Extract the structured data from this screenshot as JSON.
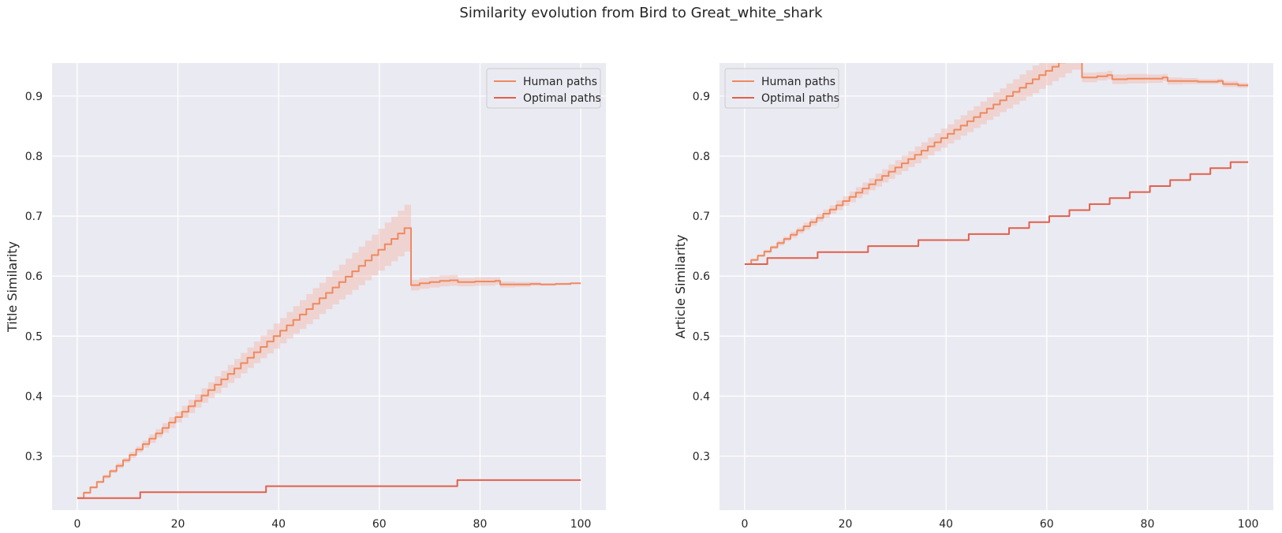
{
  "figure": {
    "title": "Similarity evolution from Bird to Great_white_shark"
  },
  "colors": {
    "human": "#EE8A5F",
    "optimal": "#E2604A",
    "band": "#F4B9A8",
    "panel_bg": "#EAEAF2",
    "grid": "#FFFFFF"
  },
  "chart_data": [
    {
      "type": "line",
      "title": "",
      "xlabel": "Percentage of path",
      "ylabel": "Title Similarity",
      "xlim": [
        -5,
        105
      ],
      "ylim": [
        0.21,
        0.955
      ],
      "xticks": [
        0,
        20,
        40,
        60,
        80,
        100
      ],
      "yticks": [
        0.3,
        0.4,
        0.5,
        0.6,
        0.7,
        0.8,
        0.9
      ],
      "grid": true,
      "legend_position": "top-right",
      "series": [
        {
          "name": "Human paths",
          "style": "staircase",
          "x": [
            0,
            1.3,
            2.6,
            3.9,
            5.2,
            6.5,
            7.8,
            9.1,
            10.4,
            11.7,
            13,
            14.3,
            15.6,
            16.9,
            18.2,
            19.5,
            20.8,
            22.1,
            23.4,
            24.7,
            26,
            27.3,
            28.6,
            29.9,
            31.2,
            32.5,
            33.8,
            35.1,
            36.4,
            37.7,
            39,
            40.3,
            41.6,
            42.9,
            44.2,
            45.5,
            46.8,
            48.1,
            49.4,
            50.7,
            52,
            53.3,
            54.6,
            55.9,
            57.2,
            58.5,
            59.8,
            61.1,
            62.4,
            63.7,
            65,
            66.3,
            68,
            70,
            72,
            74,
            75.6,
            77,
            79,
            81,
            83,
            84,
            87,
            90,
            92,
            95,
            98,
            100
          ],
          "y": [
            0.23,
            0.239,
            0.248,
            0.257,
            0.266,
            0.275,
            0.284,
            0.293,
            0.302,
            0.311,
            0.32,
            0.329,
            0.338,
            0.347,
            0.356,
            0.365,
            0.374,
            0.383,
            0.392,
            0.401,
            0.41,
            0.419,
            0.428,
            0.437,
            0.446,
            0.455,
            0.464,
            0.473,
            0.482,
            0.491,
            0.5,
            0.509,
            0.518,
            0.527,
            0.536,
            0.545,
            0.554,
            0.563,
            0.572,
            0.581,
            0.59,
            0.599,
            0.608,
            0.617,
            0.626,
            0.635,
            0.644,
            0.653,
            0.662,
            0.671,
            0.68,
            0.585,
            0.588,
            0.59,
            0.592,
            0.593,
            0.59,
            0.59,
            0.591,
            0.591,
            0.592,
            0.586,
            0.586,
            0.587,
            0.586,
            0.587,
            0.588,
            0.588
          ],
          "ci_lower": [
            0.23,
            0.237,
            0.246,
            0.255,
            0.263,
            0.272,
            0.28,
            0.289,
            0.297,
            0.306,
            0.314,
            0.322,
            0.331,
            0.339,
            0.347,
            0.356,
            0.364,
            0.372,
            0.381,
            0.389,
            0.397,
            0.405,
            0.414,
            0.422,
            0.43,
            0.438,
            0.447,
            0.455,
            0.463,
            0.471,
            0.479,
            0.488,
            0.496,
            0.504,
            0.512,
            0.52,
            0.528,
            0.537,
            0.545,
            0.553,
            0.561,
            0.569,
            0.577,
            0.585,
            0.593,
            0.601,
            0.609,
            0.617,
            0.625,
            0.633,
            0.641,
            0.576,
            0.579,
            0.581,
            0.583,
            0.584,
            0.583,
            0.583,
            0.584,
            0.584,
            0.586,
            0.581,
            0.582,
            0.584,
            0.584,
            0.585,
            0.587,
            0.587
          ],
          "ci_upper": [
            0.23,
            0.241,
            0.25,
            0.259,
            0.269,
            0.278,
            0.288,
            0.297,
            0.307,
            0.316,
            0.326,
            0.336,
            0.345,
            0.355,
            0.365,
            0.374,
            0.384,
            0.394,
            0.403,
            0.413,
            0.423,
            0.433,
            0.442,
            0.452,
            0.462,
            0.472,
            0.481,
            0.491,
            0.501,
            0.511,
            0.521,
            0.53,
            0.54,
            0.55,
            0.56,
            0.57,
            0.58,
            0.589,
            0.599,
            0.609,
            0.619,
            0.629,
            0.639,
            0.649,
            0.659,
            0.669,
            0.679,
            0.689,
            0.699,
            0.709,
            0.719,
            0.594,
            0.597,
            0.599,
            0.601,
            0.602,
            0.597,
            0.597,
            0.598,
            0.598,
            0.598,
            0.591,
            0.59,
            0.59,
            0.588,
            0.589,
            0.589,
            0.589
          ]
        },
        {
          "name": "Optimal paths",
          "style": "staircase",
          "x": [
            0,
            12.5,
            37.5,
            75.5,
            100
          ],
          "y": [
            0.23,
            0.24,
            0.25,
            0.26,
            0.26
          ]
        }
      ]
    },
    {
      "type": "line",
      "title": "",
      "xlabel": "Percentage of path",
      "ylabel": "Article Similarity",
      "xlim": [
        -5,
        105
      ],
      "ylim": [
        0.21,
        0.955
      ],
      "xticks": [
        0,
        20,
        40,
        60,
        80,
        100
      ],
      "yticks": [
        0.3,
        0.4,
        0.5,
        0.6,
        0.7,
        0.8,
        0.9
      ],
      "grid": true,
      "legend_position": "top-left",
      "series": [
        {
          "name": "Human paths",
          "style": "staircase",
          "x": [
            0,
            1.3,
            2.6,
            3.9,
            5.2,
            6.5,
            7.8,
            9.1,
            10.4,
            11.7,
            13,
            14.3,
            15.6,
            16.9,
            18.2,
            19.5,
            20.8,
            22.1,
            23.4,
            24.7,
            26,
            27.3,
            28.6,
            29.9,
            31.2,
            32.5,
            33.8,
            35.1,
            36.4,
            37.7,
            39,
            40.3,
            41.6,
            42.9,
            44.2,
            45.5,
            46.8,
            48.1,
            49.4,
            50.7,
            52,
            53.3,
            54.6,
            55.9,
            57.2,
            58.5,
            59.8,
            61.1,
            62.4,
            63.7,
            65,
            67,
            70,
            72,
            73,
            76,
            80,
            83,
            84,
            87,
            90,
            94,
            95,
            98,
            100
          ],
          "y": [
            0.62,
            0.627,
            0.634,
            0.641,
            0.648,
            0.655,
            0.662,
            0.669,
            0.676,
            0.683,
            0.69,
            0.697,
            0.704,
            0.711,
            0.718,
            0.725,
            0.732,
            0.739,
            0.746,
            0.753,
            0.76,
            0.767,
            0.774,
            0.781,
            0.788,
            0.795,
            0.802,
            0.809,
            0.816,
            0.823,
            0.83,
            0.837,
            0.844,
            0.851,
            0.858,
            0.865,
            0.872,
            0.879,
            0.886,
            0.893,
            0.9,
            0.907,
            0.914,
            0.921,
            0.928,
            0.935,
            0.942,
            0.949,
            0.956,
            0.963,
            0.97,
            0.931,
            0.933,
            0.935,
            0.928,
            0.929,
            0.929,
            0.931,
            0.925,
            0.925,
            0.924,
            0.925,
            0.92,
            0.918,
            0.918
          ],
          "ci_lower": [
            0.62,
            0.625,
            0.632,
            0.638,
            0.645,
            0.651,
            0.658,
            0.664,
            0.671,
            0.677,
            0.684,
            0.691,
            0.697,
            0.704,
            0.71,
            0.717,
            0.723,
            0.73,
            0.736,
            0.743,
            0.749,
            0.756,
            0.762,
            0.769,
            0.775,
            0.782,
            0.788,
            0.795,
            0.801,
            0.808,
            0.814,
            0.821,
            0.827,
            0.834,
            0.84,
            0.847,
            0.853,
            0.86,
            0.866,
            0.873,
            0.879,
            0.886,
            0.892,
            0.899,
            0.905,
            0.912,
            0.918,
            0.925,
            0.931,
            0.938,
            0.944,
            0.923,
            0.926,
            0.928,
            0.92,
            0.921,
            0.922,
            0.925,
            0.919,
            0.92,
            0.92,
            0.921,
            0.915,
            0.914,
            0.914
          ],
          "ci_upper": [
            0.62,
            0.629,
            0.636,
            0.644,
            0.651,
            0.659,
            0.666,
            0.674,
            0.681,
            0.689,
            0.696,
            0.703,
            0.711,
            0.718,
            0.726,
            0.733,
            0.741,
            0.748,
            0.756,
            0.763,
            0.771,
            0.778,
            0.786,
            0.793,
            0.801,
            0.808,
            0.816,
            0.823,
            0.831,
            0.838,
            0.846,
            0.853,
            0.861,
            0.868,
            0.876,
            0.883,
            0.891,
            0.898,
            0.906,
            0.913,
            0.921,
            0.928,
            0.936,
            0.943,
            0.951,
            0.958,
            0.966,
            0.973,
            0.981,
            0.988,
            0.996,
            0.939,
            0.94,
            0.942,
            0.936,
            0.937,
            0.936,
            0.937,
            0.931,
            0.93,
            0.928,
            0.929,
            0.925,
            0.922,
            0.922
          ]
        },
        {
          "name": "Optimal paths",
          "style": "staircase",
          "x": [
            0,
            4.5,
            14.5,
            24.5,
            34.5,
            44.5,
            52.5,
            56.5,
            60.5,
            64.5,
            68.5,
            72.5,
            76.5,
            80.5,
            84.5,
            88.5,
            92.5,
            96.5,
            100
          ],
          "y": [
            0.62,
            0.63,
            0.64,
            0.65,
            0.66,
            0.67,
            0.68,
            0.69,
            0.7,
            0.71,
            0.72,
            0.73,
            0.74,
            0.75,
            0.76,
            0.77,
            0.78,
            0.79,
            0.79
          ]
        }
      ]
    }
  ]
}
